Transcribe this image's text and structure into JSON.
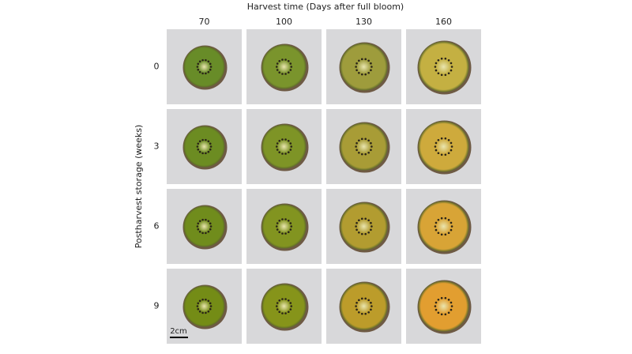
{
  "figure": {
    "column_axis_title": "Harvest time (Days after full bloom)",
    "columns": [
      "70",
      "100",
      "130",
      "160"
    ],
    "row_axis_title": "Postharvest storage (weeks)",
    "rows": [
      "0",
      "3",
      "6",
      "9"
    ],
    "scale_bar": "2cm"
  }
}
